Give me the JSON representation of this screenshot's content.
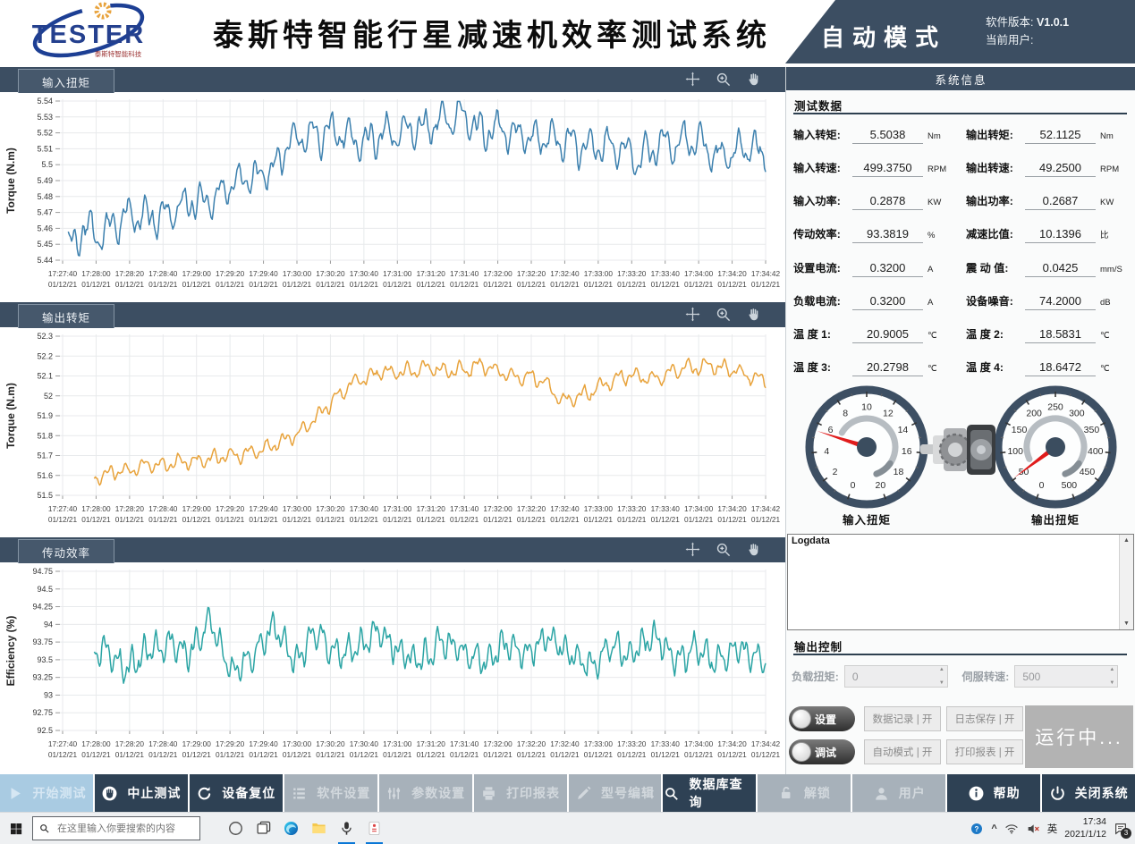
{
  "header": {
    "logo_text": "TESTER",
    "logo_sub": "泰斯特智能科技",
    "title": "泰斯特智能行星减速机效率测试系统",
    "mode": "自动模式",
    "version_label": "软件版本:",
    "version_value": "V1.0.1",
    "user_label": "当前用户:",
    "user_value": ""
  },
  "chart_data": {
    "xaxis": {
      "tick_times": [
        "17:27:40",
        "17:28:00",
        "17:28:20",
        "17:28:40",
        "17:29:00",
        "17:29:20",
        "17:29:40",
        "17:30:00",
        "17:30:20",
        "17:30:40",
        "17:31:00",
        "17:31:20",
        "17:31:40",
        "17:32:00",
        "17:32:20",
        "17:32:40",
        "17:33:00",
        "17:33:20",
        "17:33:40",
        "17:34:00",
        "17:34:20",
        "17:34:42"
      ],
      "tick_date": "01/12/21"
    },
    "charts": [
      {
        "type": "line",
        "title": "输入扭矩",
        "ylabel": "Torque (N.m)",
        "color": "#3c80ae",
        "ylim": [
          5.44,
          5.54
        ],
        "yticks": [
          "5.54",
          "5.53",
          "5.52",
          "5.51",
          "5.5",
          "5.49",
          "5.48",
          "5.47",
          "5.46",
          "5.45",
          "5.44"
        ],
        "x_start": 0.008,
        "noise_amp": 0.016,
        "osc_freq": [
          38,
          90
        ],
        "seed": 11,
        "trend": [
          [
            0.0,
            5.458
          ],
          [
            0.015,
            5.447
          ],
          [
            0.03,
            5.462
          ],
          [
            0.05,
            5.455
          ],
          [
            0.08,
            5.465
          ],
          [
            0.1,
            5.468
          ],
          [
            0.13,
            5.467
          ],
          [
            0.16,
            5.472
          ],
          [
            0.19,
            5.477
          ],
          [
            0.22,
            5.48
          ],
          [
            0.25,
            5.49
          ],
          [
            0.28,
            5.494
          ],
          [
            0.3,
            5.5
          ],
          [
            0.32,
            5.513
          ],
          [
            0.35,
            5.52
          ],
          [
            0.38,
            5.522
          ],
          [
            0.42,
            5.515
          ],
          [
            0.46,
            5.52
          ],
          [
            0.5,
            5.522
          ],
          [
            0.54,
            5.528
          ],
          [
            0.57,
            5.53
          ],
          [
            0.6,
            5.52
          ],
          [
            0.63,
            5.523
          ],
          [
            0.66,
            5.518
          ],
          [
            0.7,
            5.515
          ],
          [
            0.74,
            5.51
          ],
          [
            0.78,
            5.512
          ],
          [
            0.82,
            5.505
          ],
          [
            0.86,
            5.513
          ],
          [
            0.9,
            5.516
          ],
          [
            0.94,
            5.503
          ],
          [
            0.97,
            5.512
          ],
          [
            1.0,
            5.505
          ]
        ]
      },
      {
        "type": "line",
        "title": "输出转矩",
        "ylabel": "Torque (N.m)",
        "color": "#e8a33c",
        "ylim": [
          51.5,
          52.3
        ],
        "yticks": [
          "52.3",
          "52.2",
          "52.1",
          "52",
          "51.9",
          "51.8",
          "51.7",
          "51.6",
          "51.5"
        ],
        "x_start": 0.045,
        "noise_amp": 0.055,
        "osc_freq": [
          40,
          95
        ],
        "seed": 23,
        "trend": [
          [
            0.0,
            51.565
          ],
          [
            0.03,
            51.585
          ],
          [
            0.06,
            51.6
          ],
          [
            0.09,
            51.625
          ],
          [
            0.12,
            51.65
          ],
          [
            0.15,
            51.66
          ],
          [
            0.18,
            51.67
          ],
          [
            0.21,
            51.685
          ],
          [
            0.24,
            51.7
          ],
          [
            0.27,
            51.72
          ],
          [
            0.3,
            51.75
          ],
          [
            0.33,
            51.8
          ],
          [
            0.36,
            51.88
          ],
          [
            0.39,
            52.0
          ],
          [
            0.42,
            52.08
          ],
          [
            0.45,
            52.12
          ],
          [
            0.48,
            52.12
          ],
          [
            0.52,
            52.14
          ],
          [
            0.56,
            52.12
          ],
          [
            0.6,
            52.15
          ],
          [
            0.64,
            52.1
          ],
          [
            0.68,
            52.08
          ],
          [
            0.71,
            51.98
          ],
          [
            0.74,
            52.0
          ],
          [
            0.77,
            52.06
          ],
          [
            0.8,
            52.1
          ],
          [
            0.84,
            52.08
          ],
          [
            0.88,
            52.14
          ],
          [
            0.92,
            52.15
          ],
          [
            0.96,
            52.12
          ],
          [
            1.0,
            52.08
          ]
        ]
      },
      {
        "type": "line",
        "title": "传动效率",
        "ylabel": "Efficiency (%)",
        "color": "#2aa4a4",
        "ylim": [
          92.5,
          94.75
        ],
        "yticks": [
          "94.75",
          "94.5",
          "94.25",
          "94",
          "93.75",
          "93.5",
          "93.25",
          "93",
          "92.75",
          "92.5"
        ],
        "x_start": 0.045,
        "noise_amp": 0.3,
        "osc_freq": [
          55,
          120
        ],
        "seed": 37,
        "trend": [
          [
            0.0,
            93.75
          ],
          [
            0.03,
            93.45
          ],
          [
            0.06,
            93.65
          ],
          [
            0.09,
            93.35
          ],
          [
            0.12,
            93.65
          ],
          [
            0.15,
            93.75
          ],
          [
            0.18,
            93.55
          ],
          [
            0.21,
            94.05
          ],
          [
            0.24,
            93.35
          ],
          [
            0.27,
            93.55
          ],
          [
            0.3,
            93.95
          ],
          [
            0.33,
            93.45
          ],
          [
            0.36,
            93.9
          ],
          [
            0.39,
            93.55
          ],
          [
            0.42,
            93.65
          ],
          [
            0.45,
            93.9
          ],
          [
            0.48,
            93.6
          ],
          [
            0.51,
            93.45
          ],
          [
            0.54,
            93.8
          ],
          [
            0.57,
            93.6
          ],
          [
            0.6,
            93.45
          ],
          [
            0.63,
            93.75
          ],
          [
            0.66,
            93.55
          ],
          [
            0.69,
            93.85
          ],
          [
            0.72,
            93.6
          ],
          [
            0.75,
            93.4
          ],
          [
            0.78,
            93.7
          ],
          [
            0.81,
            93.55
          ],
          [
            0.84,
            93.85
          ],
          [
            0.87,
            93.5
          ],
          [
            0.9,
            93.65
          ],
          [
            0.93,
            93.45
          ],
          [
            0.96,
            93.7
          ],
          [
            1.0,
            93.45
          ]
        ]
      }
    ]
  },
  "side": {
    "title": "系统信息",
    "test_data": {
      "title": "测试数据",
      "rows": [
        [
          {
            "label": "输入转矩:",
            "value": "5.5038",
            "unit": "Nm"
          },
          {
            "label": "输出转矩:",
            "value": "52.1125",
            "unit": "Nm"
          }
        ],
        [
          {
            "label": "输入转速:",
            "value": "499.3750",
            "unit": "RPM"
          },
          {
            "label": "输出转速:",
            "value": "49.2500",
            "unit": "RPM"
          }
        ],
        [
          {
            "label": "输入功率:",
            "value": "0.2878",
            "unit": "KW"
          },
          {
            "label": "输出功率:",
            "value": "0.2687",
            "unit": "KW"
          }
        ],
        [
          {
            "label": "传动效率:",
            "value": "93.3819",
            "unit": "%"
          },
          {
            "label": "减速比值:",
            "value": "10.1396",
            "unit": "比"
          }
        ],
        [
          {
            "label": "设置电流:",
            "value": "0.3200",
            "unit": "A"
          },
          {
            "label": "震 动 值:",
            "value": "0.0425",
            "unit": "mm/S"
          }
        ],
        [
          {
            "label": "负载电流:",
            "value": "0.3200",
            "unit": "A"
          },
          {
            "label": "设备噪音:",
            "value": "74.2000",
            "unit": "dB"
          }
        ],
        [
          {
            "label": "温 度 1:",
            "value": "20.9005",
            "unit": "℃"
          },
          {
            "label": "温 度 2:",
            "value": "18.5831",
            "unit": "℃"
          }
        ],
        [
          {
            "label": "温 度 3:",
            "value": "20.2798",
            "unit": "℃"
          },
          {
            "label": "温 度 4:",
            "value": "18.6472",
            "unit": "℃"
          }
        ]
      ]
    },
    "gauges": [
      {
        "label": "输入扭矩",
        "min": 0,
        "max": 20,
        "tick_labels": [
          "0",
          "2",
          "4",
          "6",
          "8",
          "10",
          "12",
          "14",
          "16",
          "18",
          "20"
        ],
        "value": 5.5
      },
      {
        "label": "输出扭矩",
        "min": 0,
        "max": 500,
        "tick_labels": [
          "0",
          "50",
          "100",
          "150",
          "200",
          "250",
          "300",
          "350",
          "400",
          "450",
          "500"
        ],
        "value": 52
      }
    ],
    "logdata_label": "Logdata",
    "output_control": {
      "title": "输出控制",
      "fields": [
        {
          "label": "负载扭矩:",
          "value": "0",
          "name": "load-torque"
        },
        {
          "label": "伺服转速:",
          "value": "500",
          "name": "servo-speed"
        }
      ]
    },
    "controls": {
      "toggles": [
        {
          "label": "设置",
          "name": "settings"
        },
        {
          "label": "调试",
          "name": "debug"
        }
      ],
      "flags": [
        {
          "label": "数据记录 | 开",
          "name": "data-record"
        },
        {
          "label": "日志保存 | 开",
          "name": "log-save"
        },
        {
          "label": "自动模式 | 开",
          "name": "auto-mode"
        },
        {
          "label": "打印报表 | 开",
          "name": "print-report"
        }
      ],
      "status": "运行中..."
    }
  },
  "toolbar": {
    "buttons": [
      {
        "label": "开始测试",
        "icon": "play",
        "style": "light",
        "name": "start-test"
      },
      {
        "label": "中止测试",
        "icon": "hand-stop",
        "style": "dark",
        "name": "abort-test"
      },
      {
        "label": "设备复位",
        "icon": "refresh",
        "style": "dark",
        "name": "device-reset"
      },
      {
        "label": "软件设置",
        "icon": "list",
        "style": "gray",
        "name": "software-settings"
      },
      {
        "label": "参数设置",
        "icon": "sliders",
        "style": "gray",
        "name": "parameter-settings"
      },
      {
        "label": "打印报表",
        "icon": "printer",
        "style": "gray",
        "name": "print-report"
      },
      {
        "label": "型号编辑",
        "icon": "pencil",
        "style": "gray",
        "name": "model-edit"
      },
      {
        "label": "数据库查询",
        "icon": "search",
        "style": "dark",
        "name": "database-query"
      },
      {
        "label": "解锁",
        "icon": "unlock",
        "style": "gray",
        "name": "unlock"
      },
      {
        "label": "用户",
        "icon": "user",
        "style": "gray",
        "name": "user"
      },
      {
        "label": "帮助",
        "icon": "info",
        "style": "dark",
        "name": "help"
      },
      {
        "label": "关闭系统",
        "icon": "power",
        "style": "dark",
        "name": "shutdown"
      }
    ]
  },
  "taskbar": {
    "search_placeholder": "在这里输入你要搜索的内容",
    "icons": [
      {
        "name": "cortana",
        "running": false
      },
      {
        "name": "task-view",
        "running": false
      },
      {
        "name": "edge",
        "running": false
      },
      {
        "name": "file-explorer",
        "running": false
      },
      {
        "name": "app-1",
        "running": true
      },
      {
        "name": "app-2",
        "running": true
      }
    ],
    "tray": {
      "lang": "英",
      "time": "17:34",
      "date": "2021/1/12",
      "badge": "3"
    }
  },
  "colors": {
    "accent_dark": "#3c4e62",
    "toolbar_dark": "#2e4154",
    "toolbar_gray": "#a7b1ba",
    "start_light": "#a9cbe2",
    "needle_red": "#e01b1b"
  }
}
